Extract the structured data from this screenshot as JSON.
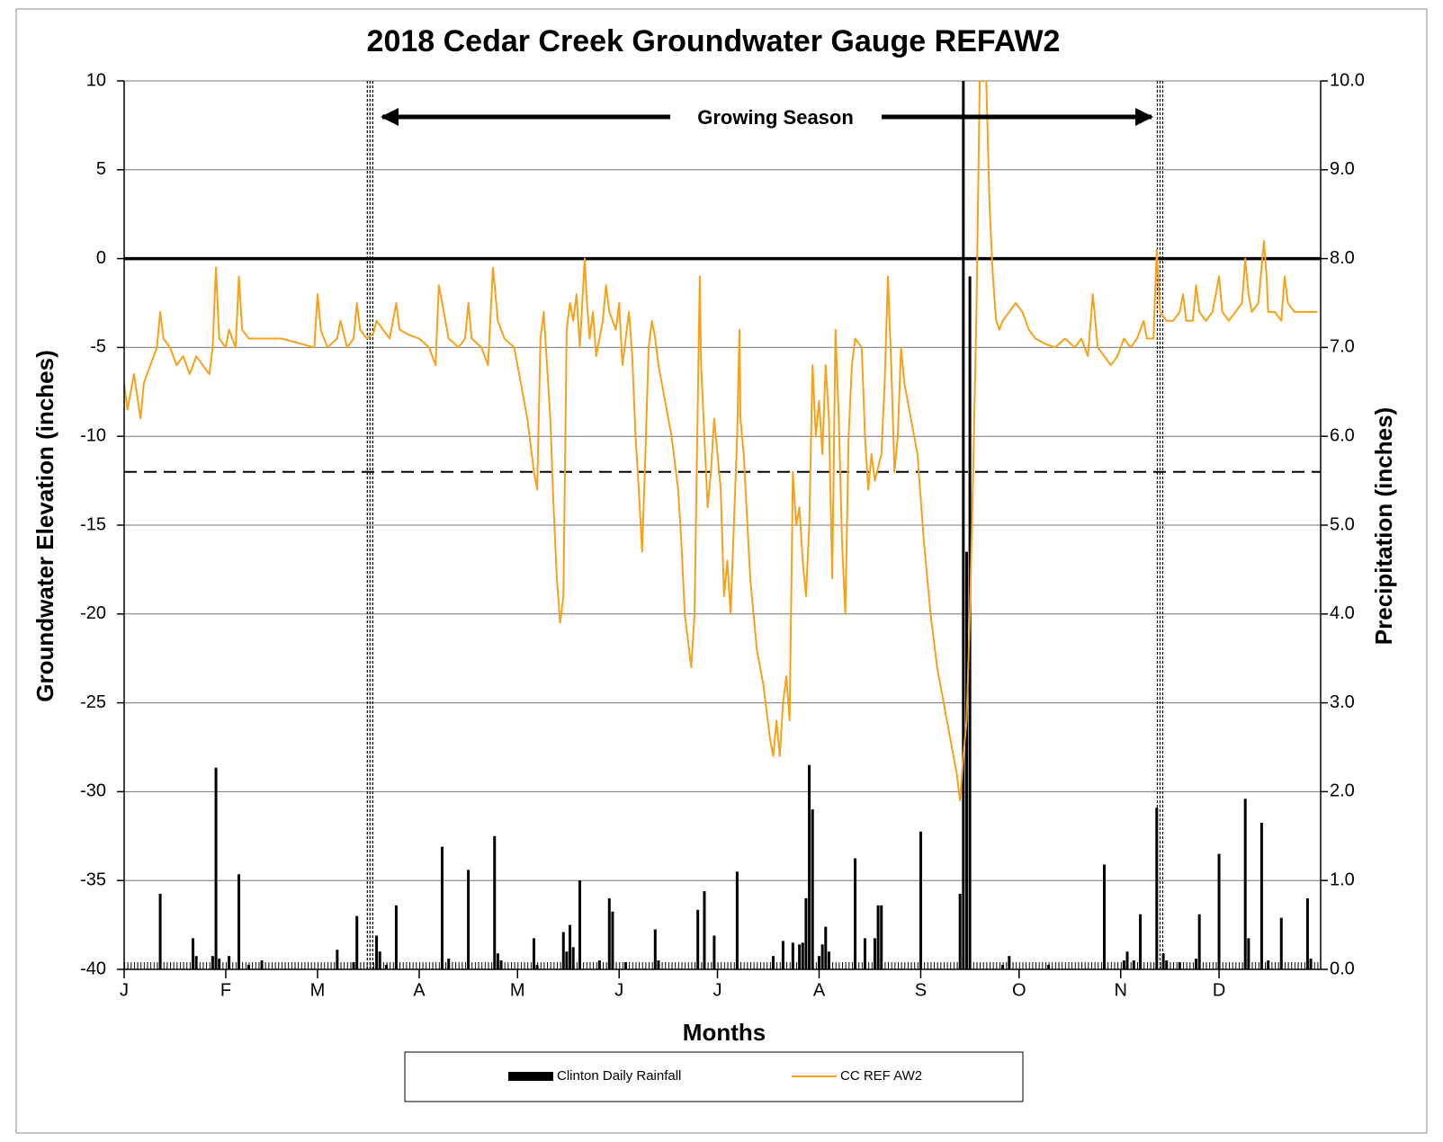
{
  "chart_data": {
    "type": "line_bar",
    "title": "2018 Cedar Creek Groundwater Gauge REFAW2",
    "xlabel": "Months",
    "ylabel": "Groundwater Elevation (inches)",
    "y2label": "Precipitation (inches)",
    "annotation": "Growing Season",
    "xlim": [
      0,
      365
    ],
    "xticks": [
      {
        "value": 0,
        "label": "J"
      },
      {
        "value": 31,
        "label": "F"
      },
      {
        "value": 59,
        "label": "M"
      },
      {
        "value": 90,
        "label": "A"
      },
      {
        "value": 120,
        "label": "M"
      },
      {
        "value": 151,
        "label": "J"
      },
      {
        "value": 181,
        "label": "J"
      },
      {
        "value": 212,
        "label": "A"
      },
      {
        "value": 243,
        "label": "S"
      },
      {
        "value": 273,
        "label": "O"
      },
      {
        "value": 304,
        "label": "N"
      },
      {
        "value": 334,
        "label": "D"
      }
    ],
    "ylim": [
      -40,
      10
    ],
    "yticks": [
      10,
      5,
      0,
      -5,
      -10,
      -15,
      -20,
      -25,
      -30,
      -35,
      -40
    ],
    "y2lim": [
      0,
      10
    ],
    "y2ticks": [
      {
        "value": 10,
        "label": "10.0"
      },
      {
        "value": 9,
        "label": "9.0"
      },
      {
        "value": 8,
        "label": "8.0"
      },
      {
        "value": 7,
        "label": "7.0"
      },
      {
        "value": 6,
        "label": "6.0"
      },
      {
        "value": 5,
        "label": "5.0"
      },
      {
        "value": 4,
        "label": "4.0"
      },
      {
        "value": 3,
        "label": "3.0"
      },
      {
        "value": 2,
        "label": "2.0"
      },
      {
        "value": 1,
        "label": "1.0"
      },
      {
        "value": 0,
        "label": "0.0"
      }
    ],
    "grid": true,
    "hlines": [
      {
        "value": 0,
        "style": "solid"
      },
      {
        "value": -12,
        "style": "dashed"
      }
    ],
    "vlines": [
      75,
      316
    ],
    "series": [
      {
        "name": "Clinton Daily Rainfall",
        "type": "bar",
        "axis": "y2",
        "color": "#000000",
        "x": [
          11,
          21,
          22,
          27,
          28,
          29,
          32,
          35,
          38,
          42,
          65,
          70,
          71,
          77,
          78,
          80,
          83,
          97,
          99,
          105,
          113,
          114,
          115,
          125,
          126,
          134,
          135,
          136,
          137,
          139,
          145,
          148,
          149,
          153,
          162,
          163,
          175,
          177,
          180,
          187,
          198,
          201,
          204,
          206,
          207,
          208,
          209,
          210,
          212,
          213,
          214,
          215,
          223,
          226,
          229,
          230,
          231,
          243,
          255,
          256,
          257,
          258,
          268,
          270,
          282,
          299,
          305,
          306,
          308,
          310,
          315,
          317,
          318,
          322,
          327,
          328,
          334,
          342,
          343,
          347,
          349,
          353,
          361,
          362
        ],
        "values": [
          0.85,
          0.35,
          0.15,
          0.15,
          2.27,
          0.12,
          0.15,
          1.07,
          0.05,
          0.1,
          0.22,
          0.08,
          0.6,
          0.38,
          0.2,
          0.05,
          0.72,
          1.38,
          0.12,
          1.12,
          1.5,
          0.18,
          0.1,
          0.35,
          0.05,
          0.42,
          0.2,
          0.5,
          0.25,
          1.0,
          0.1,
          0.8,
          0.65,
          0.08,
          0.45,
          0.1,
          0.67,
          0.88,
          0.38,
          1.1,
          0.15,
          0.32,
          0.3,
          0.28,
          0.3,
          0.8,
          2.3,
          1.8,
          0.15,
          0.28,
          0.48,
          0.2,
          1.25,
          0.35,
          0.35,
          0.72,
          0.72,
          1.55,
          0.85,
          10.0,
          4.7,
          7.8,
          0.05,
          0.15,
          0.05,
          1.18,
          0.1,
          0.2,
          0.1,
          0.62,
          1.82,
          0.18,
          0.1,
          0.08,
          0.12,
          0.62,
          1.3,
          1.92,
          0.35,
          1.65,
          0.1,
          0.58,
          0.8,
          0.12
        ]
      },
      {
        "name": "CC REF AW2",
        "type": "line",
        "axis": "y",
        "color": "#f5a21a",
        "x": [
          0,
          1,
          2,
          3,
          5,
          6,
          8,
          10,
          11,
          12,
          14,
          16,
          18,
          20,
          22,
          24,
          26,
          27,
          28,
          29,
          31,
          32,
          34,
          35,
          36,
          38,
          42,
          48,
          54,
          58,
          59,
          60,
          62,
          65,
          66,
          68,
          70,
          71,
          72,
          74,
          76,
          77,
          79,
          81,
          83,
          84,
          87,
          90,
          93,
          95,
          96,
          97,
          99,
          102,
          104,
          105,
          106,
          109,
          111,
          112.5,
          114,
          116,
          119,
          121,
          123,
          124,
          125,
          126,
          127,
          128,
          129,
          130,
          131,
          132,
          133,
          134,
          135,
          136,
          137,
          138,
          139,
          140.5,
          141,
          142,
          143,
          144,
          146,
          147,
          148,
          150,
          151,
          152,
          154,
          155,
          156,
          157,
          158,
          159,
          160,
          161,
          162,
          163,
          165,
          167,
          169,
          170,
          171,
          172,
          173,
          174,
          175,
          175.6,
          176,
          177,
          178,
          179,
          180,
          181,
          182,
          183,
          184,
          185,
          186,
          187,
          187.7,
          188,
          189,
          191,
          193,
          195,
          197,
          198,
          199,
          200,
          201,
          202,
          203,
          204,
          205,
          206,
          207,
          208,
          209,
          210,
          211,
          212,
          213,
          214,
          215,
          216,
          217,
          218,
          219,
          220,
          221,
          222,
          223,
          225,
          226,
          227,
          228,
          229,
          231,
          232,
          233,
          234,
          235,
          236,
          237,
          238,
          240,
          242,
          244,
          246,
          248,
          250,
          252,
          254,
          255,
          256,
          257,
          258,
          259,
          260,
          261,
          263,
          264,
          265,
          266,
          267,
          268,
          270,
          272,
          274,
          276,
          278,
          281,
          284,
          287,
          290,
          292,
          294,
          295.5,
          297,
          299,
          301,
          303,
          305,
          307,
          309,
          311,
          312,
          314,
          315,
          316,
          318,
          320,
          322,
          323,
          324,
          326,
          327,
          328,
          330,
          332,
          334,
          335,
          337,
          339,
          341,
          342,
          343,
          344,
          346,
          347.7,
          348.5,
          349,
          351,
          353,
          354,
          355,
          357,
          360,
          362,
          364
        ],
        "values": [
          -7,
          -8.5,
          -7.5,
          -6.5,
          -9,
          -7,
          -6,
          -5,
          -3,
          -4.5,
          -5,
          -6,
          -5.5,
          -6.5,
          -5.5,
          -6,
          -6.5,
          -5,
          -0.5,
          -4.5,
          -5,
          -4,
          -5,
          -1,
          -4,
          -4.5,
          -4.5,
          -4.5,
          -4.8,
          -5,
          -2,
          -4,
          -5,
          -4.5,
          -3.5,
          -5,
          -4.5,
          -2.5,
          -4,
          -4.5,
          -4.2,
          -3.5,
          -4,
          -4.5,
          -2.5,
          -4,
          -4.3,
          -4.5,
          -5,
          -6,
          -1.5,
          -2.5,
          -4.5,
          -5,
          -4.5,
          -2.5,
          -4.5,
          -5,
          -6,
          -0.5,
          -3.5,
          -4.5,
          -5,
          -7,
          -9,
          -10.5,
          -12,
          -13,
          -4.5,
          -3,
          -6,
          -9,
          -14,
          -18,
          -20.5,
          -19,
          -4,
          -2.5,
          -3.5,
          -2,
          -5,
          0,
          -2,
          -4.5,
          -3,
          -5.5,
          -3.5,
          -1.5,
          -3,
          -4,
          -2.5,
          -6,
          -3,
          -5.5,
          -10,
          -13,
          -16.5,
          -11,
          -5,
          -3.5,
          -4.5,
          -6,
          -8,
          -10,
          -13,
          -16,
          -20,
          -21.5,
          -23,
          -20,
          -8,
          -1,
          -6,
          -10,
          -14,
          -12,
          -9,
          -11,
          -13,
          -19,
          -17,
          -20,
          -15,
          -10,
          -4,
          -9,
          -11,
          -18,
          -22,
          -24,
          -27,
          -28,
          -26,
          -28,
          -25,
          -23.5,
          -26,
          -12,
          -15,
          -14,
          -17,
          -19,
          -15,
          -6,
          -10,
          -8,
          -11,
          -6,
          -9,
          -18,
          -4,
          -9,
          -16,
          -20,
          -10,
          -6,
          -4.5,
          -5,
          -10,
          -13,
          -11,
          -12.5,
          -11,
          -7,
          -1,
          -6,
          -12,
          -10,
          -5,
          -7,
          -9,
          -11,
          -16,
          -20,
          -23,
          -25,
          -27,
          -29,
          -30.5,
          -28,
          -26,
          -20,
          -12,
          -3,
          10,
          10,
          3,
          -1,
          -3.5,
          -4,
          -3.5,
          -3,
          -2.5,
          -3,
          -4,
          -4.5,
          -4.8,
          -5,
          -4.5,
          -5,
          -4.5,
          -5.5,
          -2,
          -5,
          -5.5,
          -6,
          -5.5,
          -4.5,
          -5,
          -4.5,
          -3.5,
          -4.5,
          -4.5,
          0.5,
          -3,
          -3.5,
          -3.5,
          -3,
          -2,
          -3.5,
          -3.5,
          -1.5,
          -3,
          -3.5,
          -3,
          -1,
          -3,
          -3.5,
          -3,
          -2.5,
          0,
          -2,
          -3,
          -2.5,
          1,
          -1,
          -3,
          -3,
          -3.5,
          -1,
          -2.5,
          -3,
          -3,
          -3,
          -3
        ]
      }
    ]
  }
}
